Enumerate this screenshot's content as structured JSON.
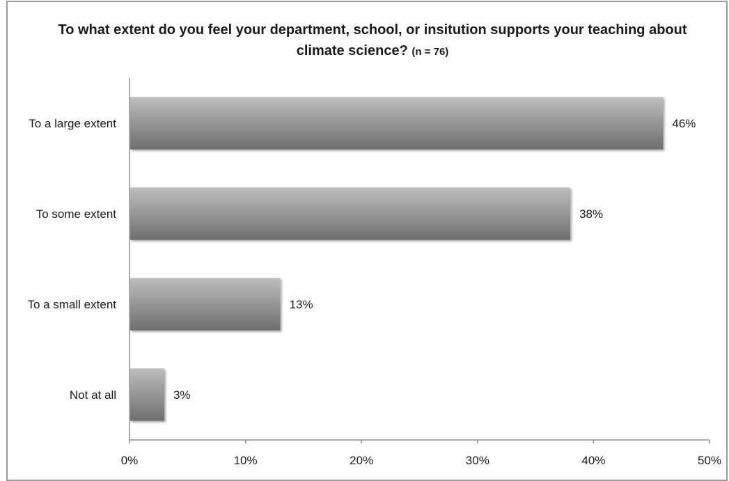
{
  "chart_data": {
    "type": "bar",
    "orientation": "horizontal",
    "title": "To what extent do you feel your department, school, or insitution supports your teaching about climate science?",
    "title_note": "(n = 76)",
    "categories": [
      "To a large extent",
      "To some extent",
      "To a small extent",
      "Not at all"
    ],
    "values": [
      46,
      38,
      13,
      3
    ],
    "value_labels": [
      "46%",
      "38%",
      "13%",
      "3%"
    ],
    "xlim": [
      0,
      50
    ],
    "xticks": [
      0,
      10,
      20,
      30,
      40,
      50
    ],
    "xtick_labels": [
      "0%",
      "10%",
      "20%",
      "30%",
      "40%",
      "50%"
    ],
    "xlabel": "",
    "ylabel": "",
    "grid": false,
    "legend": "none",
    "bar_color_light": "#bdbdbd",
    "bar_color_dark": "#6e6e6e",
    "axis_color": "#8c8c8c"
  }
}
